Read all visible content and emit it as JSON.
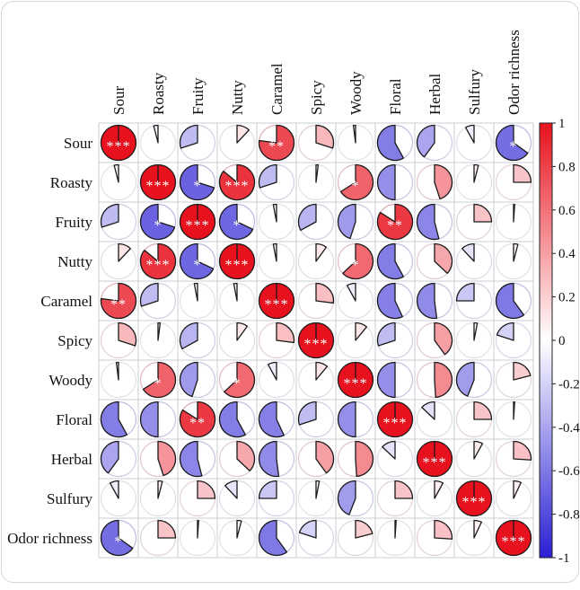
{
  "figure": {
    "description_label": "correlation pie matrix of odor attributes",
    "background": "#ffffff"
  },
  "chart_data": {
    "type": "heatmap",
    "subtype": "correlation-pie-matrix",
    "title": "",
    "xlabel": "",
    "ylabel": "",
    "legend_position": "right",
    "grid": true,
    "labels": [
      "Sour",
      "Roasty",
      "Fruity",
      "Nutty",
      "Caramel",
      "Spicy",
      "Woody",
      "Floral",
      "Herbal",
      "Sulfury",
      "Odor richness"
    ],
    "matrix": [
      [
        1.0,
        -0.04,
        -0.3,
        0.12,
        0.77,
        0.3,
        -0.02,
        -0.58,
        -0.4,
        -0.08,
        -0.65
      ],
      [
        -0.04,
        1.0,
        -0.7,
        0.86,
        -0.3,
        0.02,
        0.66,
        -0.5,
        0.45,
        0.04,
        0.25
      ],
      [
        -0.3,
        -0.7,
        1.0,
        -0.68,
        -0.03,
        -0.33,
        -0.45,
        0.84,
        -0.54,
        0.25,
        0.01
      ],
      [
        0.12,
        0.86,
        -0.68,
        1.0,
        -0.03,
        0.1,
        0.63,
        -0.58,
        0.37,
        -0.12,
        0.04
      ],
      [
        0.77,
        -0.3,
        -0.03,
        -0.03,
        1.0,
        0.27,
        -0.08,
        -0.57,
        -0.52,
        -0.25,
        -0.6
      ],
      [
        0.3,
        0.02,
        -0.33,
        0.1,
        0.27,
        1.0,
        0.11,
        -0.3,
        0.4,
        0.03,
        -0.2
      ],
      [
        -0.02,
        0.66,
        -0.45,
        0.63,
        -0.08,
        0.11,
        1.0,
        -0.5,
        0.49,
        -0.44,
        0.21
      ],
      [
        -0.58,
        -0.5,
        0.84,
        -0.58,
        -0.57,
        -0.3,
        -0.5,
        1.0,
        -0.13,
        0.25,
        0.01
      ],
      [
        -0.4,
        0.45,
        -0.54,
        0.37,
        -0.52,
        0.4,
        0.49,
        -0.13,
        1.0,
        0.08,
        0.26
      ],
      [
        -0.08,
        0.04,
        0.25,
        -0.12,
        -0.25,
        0.03,
        -0.44,
        0.25,
        0.08,
        1.0,
        0.07
      ],
      [
        -0.65,
        0.25,
        0.01,
        0.04,
        -0.6,
        -0.2,
        0.21,
        0.01,
        0.26,
        0.07,
        1.0
      ]
    ],
    "significance": {
      "0-0": "***",
      "1-1": "***",
      "2-2": "***",
      "3-3": "***",
      "4-4": "***",
      "5-5": "***",
      "6-6": "***",
      "7-7": "***",
      "8-8": "***",
      "9-9": "***",
      "10-10": "***",
      "0-4": "**",
      "4-0": "**",
      "0-10": "*",
      "10-0": "*",
      "1-2": "*",
      "2-1": "*",
      "1-3": "***",
      "3-1": "***",
      "1-6": "*",
      "6-1": "*",
      "2-3": "*",
      "3-2": "*",
      "2-7": "**",
      "7-2": "**",
      "3-6": "*",
      "6-3": "*"
    },
    "star_color": "#ffffff",
    "scale": {
      "max": 1,
      "min": -1,
      "positive_color": "#e8121e",
      "mid_color": "#ffffff",
      "negative_color": "#2a1fd4",
      "outline_color": "#1a1a1a",
      "grid_color": "#c9ccd4"
    },
    "colorbar_ticks": [
      "1",
      "0.8",
      "0.6",
      "0.4",
      "0.2",
      "0",
      "-0.2",
      "-0.4",
      "-0.6",
      "-0.8",
      "-1"
    ]
  }
}
